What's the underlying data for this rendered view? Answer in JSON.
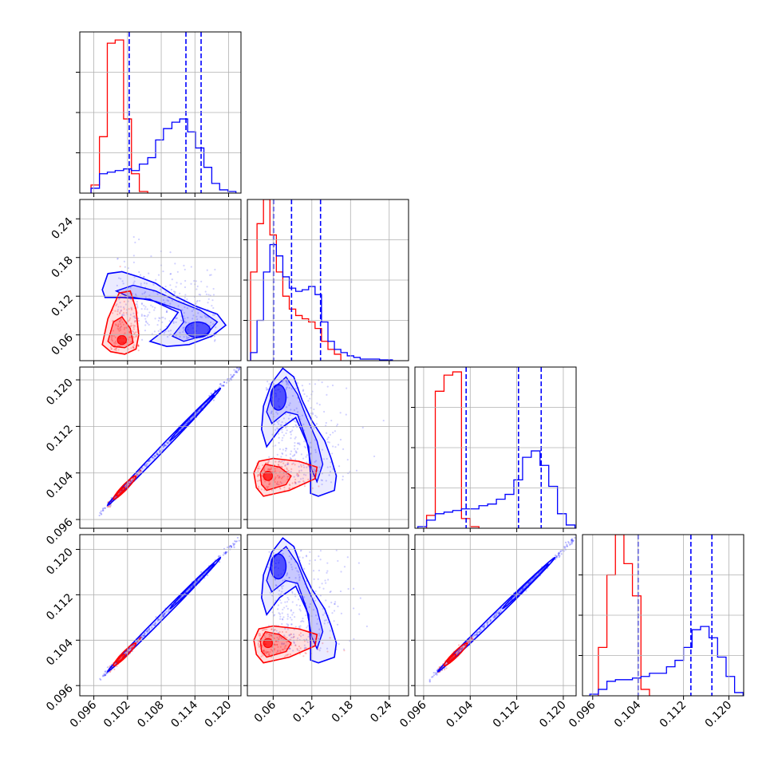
{
  "chart_data": {
    "type": "corner",
    "colors": {
      "series_a": "#ff0000",
      "series_b": "#0000ff"
    },
    "param_ticks": [
      [
        "0.096",
        "0.102",
        "0.108",
        "0.114",
        "0.120"
      ],
      [
        "0.06",
        "0.12",
        "0.18",
        "0.24"
      ],
      [
        "0.096",
        "0.104",
        "0.112",
        "0.120"
      ],
      [
        "0.096",
        "0.104",
        "0.112",
        "0.120"
      ]
    ],
    "param_tick_values": [
      [
        0.096,
        0.102,
        0.108,
        0.114,
        0.12
      ],
      [
        0.06,
        0.12,
        0.18,
        0.24
      ],
      [
        0.096,
        0.104,
        0.112,
        0.12
      ],
      [
        0.096,
        0.104,
        0.112,
        0.12
      ]
    ],
    "param_ranges": [
      [
        0.0935,
        0.1222
      ],
      [
        0.02,
        0.27
      ],
      [
        0.0945,
        0.1222
      ],
      [
        0.0942,
        0.1226
      ]
    ],
    "grid": true,
    "histograms": [
      {
        "param": 0,
        "series_a": {
          "edges": [
            0.0955,
            0.097,
            0.0984,
            0.0998,
            0.1013,
            0.1027,
            0.1041,
            0.1056
          ],
          "counts": [
            0.05,
            0.35,
            0.93,
            0.95,
            0.46,
            0.12,
            0.01
          ]
        },
        "series_b": {
          "edges": [
            0.0955,
            0.097,
            0.0984,
            0.0998,
            0.1013,
            0.1027,
            0.1041,
            0.1056,
            0.107,
            0.1084,
            0.1099,
            0.1113,
            0.1127,
            0.1141,
            0.1156,
            0.117,
            0.1184,
            0.1199,
            0.1213
          ],
          "counts": [
            0.03,
            0.12,
            0.13,
            0.14,
            0.15,
            0.14,
            0.18,
            0.22,
            0.33,
            0.4,
            0.44,
            0.46,
            0.38,
            0.28,
            0.16,
            0.06,
            0.02,
            0.01
          ]
        },
        "quantiles": [
          0.1023,
          0.1124,
          0.1151
        ]
      },
      {
        "param": 1,
        "series_a": {
          "edges": [
            0.025,
            0.035,
            0.045,
            0.055,
            0.065,
            0.075,
            0.085,
            0.095,
            0.105,
            0.115,
            0.125,
            0.135,
            0.145,
            0.155,
            0.165
          ],
          "counts": [
            0.55,
            0.85,
            1.0,
            0.78,
            0.55,
            0.4,
            0.32,
            0.28,
            0.26,
            0.24,
            0.2,
            0.12,
            0.07,
            0.04
          ]
        },
        "series_b": {
          "edges": [
            0.025,
            0.035,
            0.045,
            0.055,
            0.065,
            0.075,
            0.085,
            0.095,
            0.105,
            0.115,
            0.125,
            0.135,
            0.145,
            0.155,
            0.165,
            0.175,
            0.185,
            0.195,
            0.205,
            0.225,
            0.245
          ],
          "counts": [
            0.05,
            0.25,
            0.55,
            0.72,
            0.65,
            0.52,
            0.45,
            0.43,
            0.44,
            0.46,
            0.41,
            0.24,
            0.12,
            0.07,
            0.05,
            0.03,
            0.02,
            0.01,
            0.01,
            0.005
          ]
        },
        "quantiles": [
          0.0605,
          0.0885,
          0.1335
        ]
      },
      {
        "param": 2,
        "series_a": {
          "edges": [
            0.0965,
            0.098,
            0.0995,
            0.101,
            0.1025,
            0.104,
            0.1055
          ],
          "counts": [
            0.08,
            0.85,
            0.95,
            0.97,
            0.06,
            0.01
          ]
        },
        "series_b": {
          "edges": [
            0.095,
            0.0965,
            0.098,
            0.0995,
            0.101,
            0.1025,
            0.104,
            0.1055,
            0.107,
            0.1085,
            0.11,
            0.1115,
            0.113,
            0.1145,
            0.116,
            0.1175,
            0.119,
            0.1205,
            0.122
          ],
          "counts": [
            0.01,
            0.05,
            0.09,
            0.1,
            0.11,
            0.12,
            0.12,
            0.14,
            0.15,
            0.18,
            0.21,
            0.3,
            0.44,
            0.48,
            0.39,
            0.26,
            0.09,
            0.02
          ]
        },
        "quantiles": [
          0.1033,
          0.1123,
          0.1162
        ]
      },
      {
        "param": 3,
        "series_a": {
          "edges": [
            0.097,
            0.0985,
            0.1,
            0.1015,
            0.103,
            0.1045,
            0.106
          ],
          "counts": [
            0.3,
            0.75,
            1.0,
            0.82,
            0.62,
            0.04
          ]
        },
        "series_b": {
          "edges": [
            0.0955,
            0.097,
            0.0985,
            0.1,
            0.1015,
            0.103,
            0.1045,
            0.106,
            0.1075,
            0.109,
            0.1105,
            0.112,
            0.1135,
            0.115,
            0.1165,
            0.118,
            0.1195,
            0.121,
            0.1225
          ],
          "counts": [
            0.01,
            0.04,
            0.09,
            0.1,
            0.1,
            0.11,
            0.12,
            0.14,
            0.14,
            0.18,
            0.22,
            0.3,
            0.41,
            0.43,
            0.36,
            0.24,
            0.12,
            0.02
          ]
        },
        "quantiles": [
          0.104,
          0.1133,
          0.117
        ]
      }
    ],
    "panels_2d": [
      {
        "row": 1,
        "col": 0,
        "x_param": 0,
        "y_param": 1
      },
      {
        "row": 2,
        "col": 0,
        "x_param": 0,
        "y_param": 2
      },
      {
        "row": 2,
        "col": 1,
        "x_param": 1,
        "y_param": 2
      },
      {
        "row": 3,
        "col": 0,
        "x_param": 0,
        "y_param": 3
      },
      {
        "row": 3,
        "col": 1,
        "x_param": 1,
        "y_param": 3
      },
      {
        "row": 3,
        "col": 2,
        "x_param": 2,
        "y_param": 3
      }
    ],
    "contour_levels": [
      0.39,
      0.86,
      0.99
    ]
  }
}
